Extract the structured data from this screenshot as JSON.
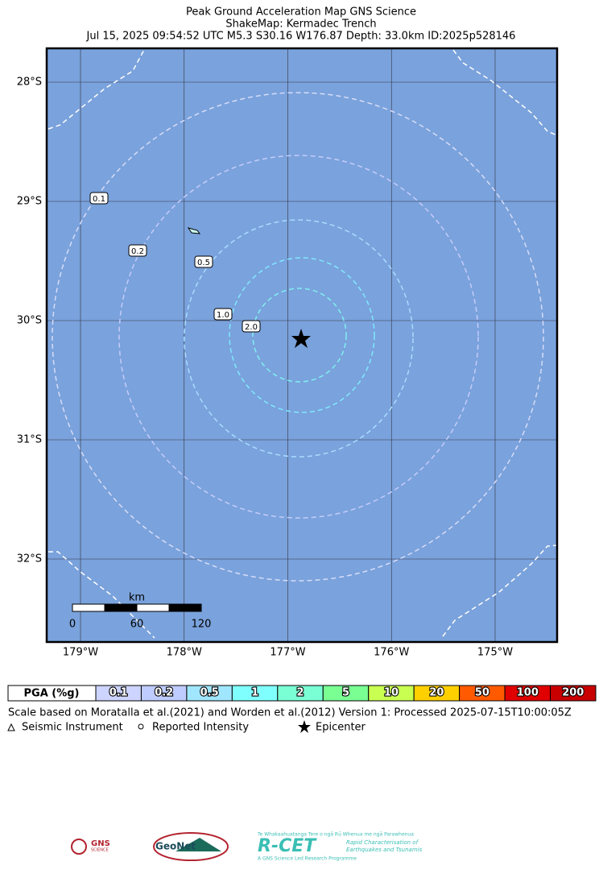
{
  "header": {
    "lines": [
      "Peak Ground Acceleration Map GNS Science",
      "ShakeMap: Kermadec Trench",
      "Jul 15, 2025 09:54:52 UTC M5.3 S30.16 W176.87 Depth: 33.0km ID:2025p528146"
    ]
  },
  "map": {
    "lon_ticks": [
      {
        "value": -179,
        "label": "179°W"
      },
      {
        "value": -178,
        "label": "178°W"
      },
      {
        "value": -177,
        "label": "177°W"
      },
      {
        "value": -176,
        "label": "176°W"
      },
      {
        "value": -175,
        "label": "175°W"
      }
    ],
    "lat_ticks": [
      {
        "value": -28,
        "label": "28°S"
      },
      {
        "value": -29,
        "label": "29°S"
      },
      {
        "value": -30,
        "label": "30°S"
      },
      {
        "value": -31,
        "label": "31°S"
      },
      {
        "value": -32,
        "label": "32°S"
      }
    ],
    "contour_labels": [
      "0.1",
      "0.2",
      "0.5",
      "1.0",
      "2.0"
    ],
    "scale_bar": {
      "unit": "km",
      "labels": [
        "0",
        "60",
        "120"
      ]
    }
  },
  "legend": {
    "title": "PGA (%g)",
    "bins": [
      {
        "label": "0.1",
        "color": "#ccd4ff"
      },
      {
        "label": "0.2",
        "color": "#bfccff"
      },
      {
        "label": "0.5",
        "color": "#a0e6ff"
      },
      {
        "label": "1",
        "color": "#80ffff"
      },
      {
        "label": "2",
        "color": "#7affd4"
      },
      {
        "label": "5",
        "color": "#7aff93"
      },
      {
        "label": "10",
        "color": "#c8ff50"
      },
      {
        "label": "20",
        "color": "#ffd000"
      },
      {
        "label": "50",
        "color": "#ff5a00"
      },
      {
        "label": "100",
        "color": "#e00000"
      },
      {
        "label": "200",
        "color": "#c80000"
      }
    ],
    "note": "Scale based on Moratalla et al.(2021) and Worden et al.(2012)   Version 1: Processed 2025-07-15T10:00:05Z",
    "symbols": [
      "Seismic Instrument",
      "Reported Intensity",
      "Epicenter"
    ]
  },
  "logos": {
    "gns": "GNS",
    "gns_sub": "SCIENCE",
    "geonet": "GeoNet",
    "rcet_top": "Te Whakaahuatanga Tere o ngā Rū Whenua me ngā Parawhenua",
    "rcet": "R-CET",
    "rcet_sub1": "Rapid Characterisation of",
    "rcet_sub2": "Earthquakes and Tsunamis",
    "rcet_foot": "A GNS Science Led Research Programme"
  }
}
